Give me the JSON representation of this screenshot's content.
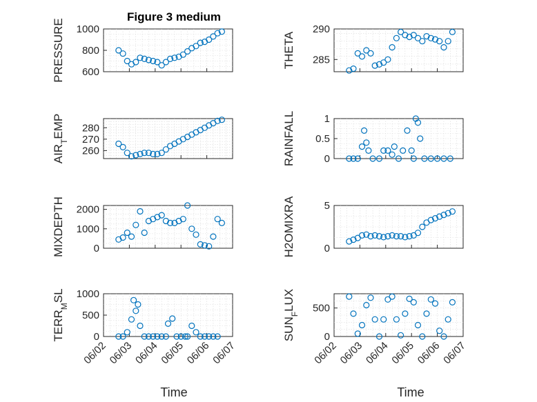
{
  "title": "Figure 3 medium",
  "marker_color": "#0072bd",
  "chart_data": [
    {
      "type": "scatter",
      "ylabel": "PRESSURE",
      "ylim": [
        600,
        1000
      ],
      "yticks": [
        600,
        800,
        1000
      ],
      "x": [
        "06/02 14:00",
        "06/02 18:00",
        "06/02 22:00",
        "06/03 02:00",
        "06/03 06:00",
        "06/03 10:00",
        "06/03 14:00",
        "06/03 18:00",
        "06/03 22:00",
        "06/04 02:00",
        "06/04 06:00",
        "06/04 10:00",
        "06/04 14:00",
        "06/04 18:00",
        "06/04 22:00",
        "06/05 02:00",
        "06/05 06:00",
        "06/05 10:00",
        "06/05 14:00",
        "06/05 18:00",
        "06/05 22:00",
        "06/06 02:00",
        "06/06 06:00",
        "06/06 10:00",
        "06/06 14:00"
      ],
      "y": [
        800,
        770,
        700,
        670,
        690,
        730,
        720,
        710,
        700,
        690,
        660,
        690,
        720,
        730,
        740,
        760,
        790,
        820,
        840,
        870,
        880,
        900,
        930,
        960,
        975
      ]
    },
    {
      "type": "scatter",
      "ylabel": "THETA",
      "ylim": [
        283,
        290
      ],
      "yticks": [
        285,
        290
      ],
      "x": [
        "06/02 14:00",
        "06/02 18:00",
        "06/02 22:00",
        "06/03 02:00",
        "06/03 06:00",
        "06/03 10:00",
        "06/03 14:00",
        "06/03 18:00",
        "06/03 22:00",
        "06/04 02:00",
        "06/04 06:00",
        "06/04 10:00",
        "06/04 14:00",
        "06/04 18:00",
        "06/04 22:00",
        "06/05 02:00",
        "06/05 06:00",
        "06/05 10:00",
        "06/05 14:00",
        "06/05 18:00",
        "06/05 22:00",
        "06/06 02:00",
        "06/06 06:00",
        "06/06 10:00",
        "06/06 14:00"
      ],
      "y": [
        283.2,
        283.5,
        286,
        285.5,
        286.5,
        286,
        284,
        284.2,
        284.5,
        285,
        287,
        288.5,
        289.5,
        289,
        288.7,
        289,
        288.5,
        288,
        288.8,
        288.5,
        288.3,
        288,
        287,
        288,
        289.5
      ]
    },
    {
      "type": "scatter",
      "ylabel": "AIR_TEMP",
      "ylim": [
        253,
        288
      ],
      "yticks": [
        260,
        270,
        280
      ],
      "x": [
        "06/02 14:00",
        "06/02 18:00",
        "06/02 22:00",
        "06/03 02:00",
        "06/03 06:00",
        "06/03 10:00",
        "06/03 14:00",
        "06/03 18:00",
        "06/03 22:00",
        "06/04 02:00",
        "06/04 06:00",
        "06/04 10:00",
        "06/04 14:00",
        "06/04 18:00",
        "06/04 22:00",
        "06/05 02:00",
        "06/05 06:00",
        "06/05 10:00",
        "06/05 14:00",
        "06/05 18:00",
        "06/05 22:00",
        "06/06 02:00",
        "06/06 06:00",
        "06/06 10:00",
        "06/06 14:00"
      ],
      "y": [
        266,
        263,
        258,
        255,
        256,
        257,
        258,
        258,
        257,
        257,
        258,
        261,
        264,
        266,
        268,
        270,
        272,
        274,
        276,
        278,
        280,
        282,
        284,
        286,
        287
      ]
    },
    {
      "type": "scatter",
      "ylabel": "RAINFALL",
      "ylim": [
        0,
        1
      ],
      "yticks": [
        0,
        0.5,
        1
      ],
      "x": [
        "06/02 14:00",
        "06/02 18:00",
        "06/02 22:00",
        "06/03 02:00",
        "06/03 04:00",
        "06/03 06:00",
        "06/03 08:00",
        "06/03 12:00",
        "06/03 18:00",
        "06/03 22:00",
        "06/04 02:00",
        "06/04 06:00",
        "06/04 08:00",
        "06/04 12:00",
        "06/04 16:00",
        "06/04 20:00",
        "06/05 00:00",
        "06/05 02:00",
        "06/05 04:00",
        "06/05 06:00",
        "06/05 08:00",
        "06/05 12:00",
        "06/05 18:00",
        "06/06 00:00",
        "06/06 06:00",
        "06/06 12:00"
      ],
      "y": [
        0,
        0,
        0,
        0.3,
        0.7,
        0.4,
        0.2,
        0,
        0,
        0.2,
        0.2,
        0.1,
        0.3,
        0,
        0.2,
        0.7,
        0.2,
        0,
        1,
        0.9,
        0.5,
        0,
        0,
        0,
        0,
        0
      ]
    },
    {
      "type": "scatter",
      "ylabel": "MIXDEPTH",
      "ylim": [
        0,
        2200
      ],
      "yticks": [
        0,
        1000,
        2000
      ],
      "x": [
        "06/02 14:00",
        "06/02 18:00",
        "06/02 22:00",
        "06/03 02:00",
        "06/03 06:00",
        "06/03 10:00",
        "06/03 14:00",
        "06/03 18:00",
        "06/03 22:00",
        "06/04 02:00",
        "06/04 06:00",
        "06/04 10:00",
        "06/04 14:00",
        "06/04 18:00",
        "06/04 22:00",
        "06/05 02:00",
        "06/05 06:00",
        "06/05 10:00",
        "06/05 14:00",
        "06/05 18:00",
        "06/05 22:00",
        "06/06 02:00",
        "06/06 06:00",
        "06/06 10:00",
        "06/06 14:00"
      ],
      "y": [
        450,
        550,
        800,
        600,
        1200,
        1900,
        800,
        1400,
        1500,
        1600,
        1700,
        1400,
        1300,
        1300,
        1400,
        1500,
        2200,
        1000,
        700,
        200,
        150,
        100,
        600,
        1500,
        1300
      ]
    },
    {
      "type": "scatter",
      "ylabel": "H2OMIXRA",
      "ylim": [
        0,
        5
      ],
      "yticks": [
        0,
        5
      ],
      "x": [
        "06/02 14:00",
        "06/02 18:00",
        "06/02 22:00",
        "06/03 02:00",
        "06/03 06:00",
        "06/03 10:00",
        "06/03 14:00",
        "06/03 18:00",
        "06/03 22:00",
        "06/04 02:00",
        "06/04 06:00",
        "06/04 10:00",
        "06/04 14:00",
        "06/04 18:00",
        "06/04 22:00",
        "06/05 02:00",
        "06/05 06:00",
        "06/05 10:00",
        "06/05 14:00",
        "06/05 18:00",
        "06/05 22:00",
        "06/06 02:00",
        "06/06 06:00",
        "06/06 10:00",
        "06/06 14:00"
      ],
      "y": [
        0.8,
        1.0,
        1.2,
        1.5,
        1.6,
        1.4,
        1.5,
        1.4,
        1.3,
        1.4,
        1.5,
        1.4,
        1.4,
        1.3,
        1.4,
        1.5,
        1.8,
        2.5,
        3.0,
        3.3,
        3.5,
        3.7,
        3.9,
        4.1,
        4.3
      ]
    },
    {
      "type": "scatter",
      "ylabel": "TERR_MSL",
      "ylim": [
        0,
        1000
      ],
      "yticks": [
        0,
        500,
        1000
      ],
      "x": [
        "06/02 14:00",
        "06/02 18:00",
        "06/02 22:00",
        "06/03 02:00",
        "06/03 04:00",
        "06/03 06:00",
        "06/03 08:00",
        "06/03 10:00",
        "06/03 14:00",
        "06/03 18:00",
        "06/03 22:00",
        "06/04 02:00",
        "06/04 06:00",
        "06/04 10:00",
        "06/04 12:00",
        "06/04 16:00",
        "06/04 20:00",
        "06/05 00:00",
        "06/05 04:00",
        "06/05 06:00",
        "06/05 10:00",
        "06/05 14:00",
        "06/05 18:00",
        "06/05 22:00",
        "06/06 02:00",
        "06/06 06:00",
        "06/06 10:00"
      ],
      "y": [
        0,
        0,
        100,
        400,
        850,
        600,
        750,
        250,
        0,
        0,
        0,
        0,
        0,
        0,
        300,
        420,
        0,
        0,
        0,
        0,
        250,
        100,
        0,
        0,
        0,
        0,
        0
      ]
    },
    {
      "type": "scatter",
      "ylabel": "SUN_FLUX",
      "ylim": [
        0,
        750
      ],
      "yticks": [
        0,
        500
      ],
      "x": [
        "06/02 14:00",
        "06/02 18:00",
        "06/02 22:00",
        "06/03 02:00",
        "06/03 06:00",
        "06/03 10:00",
        "06/03 14:00",
        "06/03 18:00",
        "06/03 22:00",
        "06/04 02:00",
        "06/04 06:00",
        "06/04 10:00",
        "06/04 14:00",
        "06/04 18:00",
        "06/04 22:00",
        "06/05 02:00",
        "06/05 06:00",
        "06/05 10:00",
        "06/05 14:00",
        "06/05 18:00",
        "06/05 22:00",
        "06/06 02:00",
        "06/06 06:00",
        "06/06 10:00",
        "06/06 14:00"
      ],
      "y": [
        700,
        400,
        50,
        200,
        550,
        680,
        300,
        0,
        300,
        650,
        700,
        300,
        20,
        400,
        660,
        600,
        200,
        0,
        400,
        650,
        580,
        100,
        0,
        300,
        600
      ]
    }
  ],
  "xaxis": {
    "range": [
      "06/02 00:00",
      "06/07 00:00"
    ],
    "tick_labels": [
      "06/02",
      "06/03",
      "06/04",
      "06/05",
      "06/06",
      "06/07"
    ],
    "label": "Time"
  }
}
